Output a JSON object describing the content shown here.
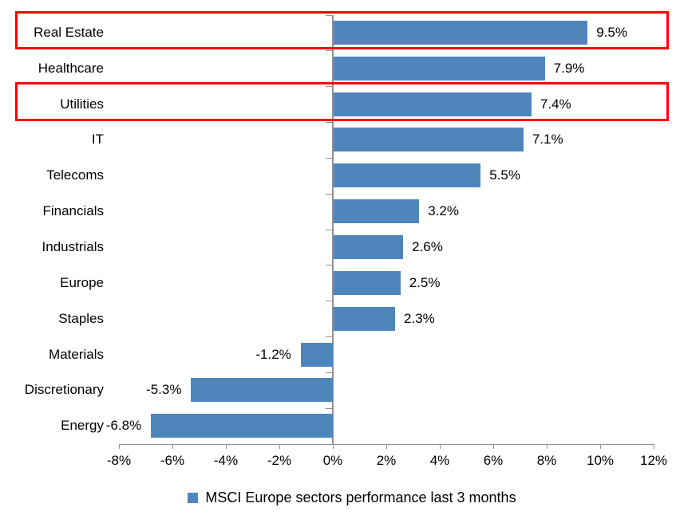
{
  "chart_data": {
    "type": "bar",
    "orientation": "horizontal",
    "title": "",
    "categories": [
      "Real Estate",
      "Healthcare",
      "Utilities",
      "IT",
      "Telecoms",
      "Financials",
      "Industrials",
      "Europe",
      "Staples",
      "Materials",
      "Discretionary",
      "Energy"
    ],
    "values": [
      9.5,
      7.9,
      7.4,
      7.1,
      5.5,
      3.2,
      2.6,
      2.5,
      2.3,
      -1.2,
      -5.3,
      -6.8
    ],
    "value_labels": [
      "9.5%",
      "7.9%",
      "7.4%",
      "7.1%",
      "5.5%",
      "3.2%",
      "2.6%",
      "2.5%",
      "2.3%",
      "-1.2%",
      "-5.3%",
      "-6.8%"
    ],
    "x_ticks": [
      -8,
      -6,
      -4,
      -2,
      0,
      2,
      4,
      6,
      8,
      10,
      12
    ],
    "x_tick_labels": [
      "-8%",
      "-6%",
      "-4%",
      "-2%",
      "0%",
      "2%",
      "4%",
      "6%",
      "8%",
      "10%",
      "12%"
    ],
    "xlim": [
      -8,
      12
    ],
    "grid": false,
    "legend": "MSCI Europe sectors performance last 3 months",
    "legend_position": "bottom",
    "highlighted_categories": [
      "Real Estate",
      "Utilities"
    ],
    "colors": {
      "bar": "#4E86BC",
      "highlight_border": "#FF0000",
      "axis": "#909090",
      "text": "#000000",
      "background": "#FFFFFF"
    }
  }
}
